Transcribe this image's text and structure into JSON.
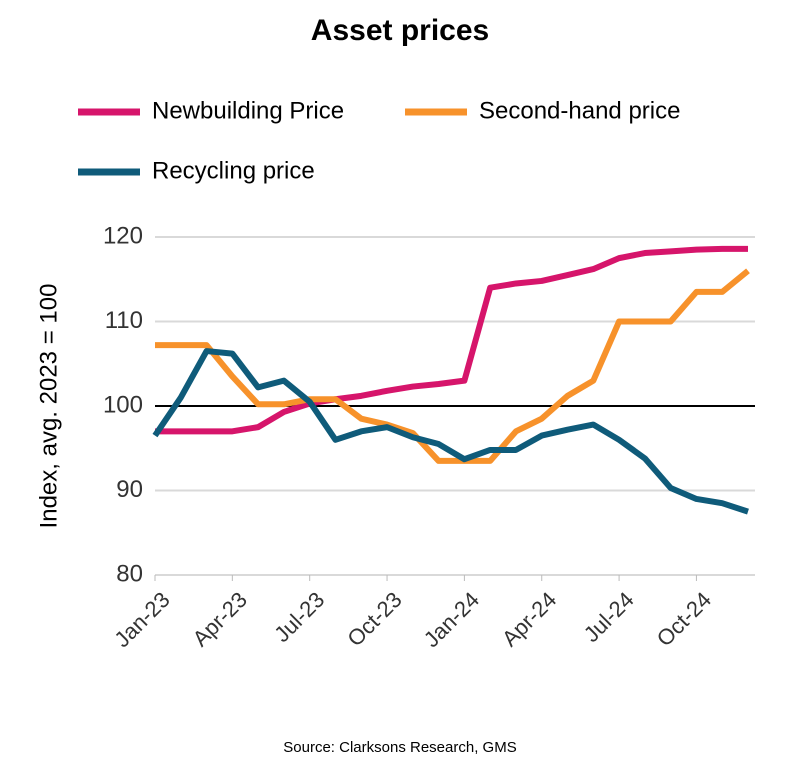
{
  "chart_data": {
    "type": "line",
    "title": "Asset prices",
    "y_label": "Index, avg. 2023 = 100",
    "source": "Source: Clarksons Research, GMS",
    "categories": [
      "Jan-23",
      null,
      null,
      "Apr-23",
      null,
      null,
      "Jul-23",
      null,
      null,
      "Oct-23",
      null,
      null,
      "Jan-24",
      null,
      null,
      "Apr-24",
      null,
      null,
      "Jul-24",
      null,
      null,
      "Oct-24",
      null,
      null
    ],
    "series": [
      {
        "name": "Newbuilding Price",
        "color": "#d6156b",
        "values": [
          97,
          97,
          97,
          97,
          97.5,
          99.3,
          100.3,
          100.8,
          101.2,
          101.8,
          102.3,
          102.6,
          103,
          114,
          114.5,
          114.8,
          115.5,
          116.2,
          117.5,
          118.1,
          118.3,
          118.5,
          118.6,
          118.6
        ]
      },
      {
        "name": "Second-hand price",
        "color": "#f7922b",
        "values": [
          107.2,
          107.2,
          107.2,
          103.5,
          100.2,
          100.2,
          100.8,
          100.8,
          98.5,
          97.8,
          96.8,
          93.5,
          93.5,
          93.5,
          97,
          98.5,
          101.2,
          103,
          110,
          110,
          110,
          113.5,
          113.5,
          116
        ]
      },
      {
        "name": "Recycling price",
        "color": "#0f5b7a",
        "values": [
          96.5,
          101,
          106.5,
          106.2,
          102.2,
          103,
          100.5,
          96,
          97,
          97.5,
          96.3,
          95.5,
          93.7,
          94.8,
          94.8,
          96.5,
          97.2,
          97.8,
          96,
          93.8,
          90.3,
          89,
          88.5,
          87.5
        ]
      }
    ],
    "ylim": [
      80,
      120
    ],
    "yticks": [
      80,
      90,
      100,
      110,
      120
    ],
    "grid": true,
    "hline": 100
  }
}
